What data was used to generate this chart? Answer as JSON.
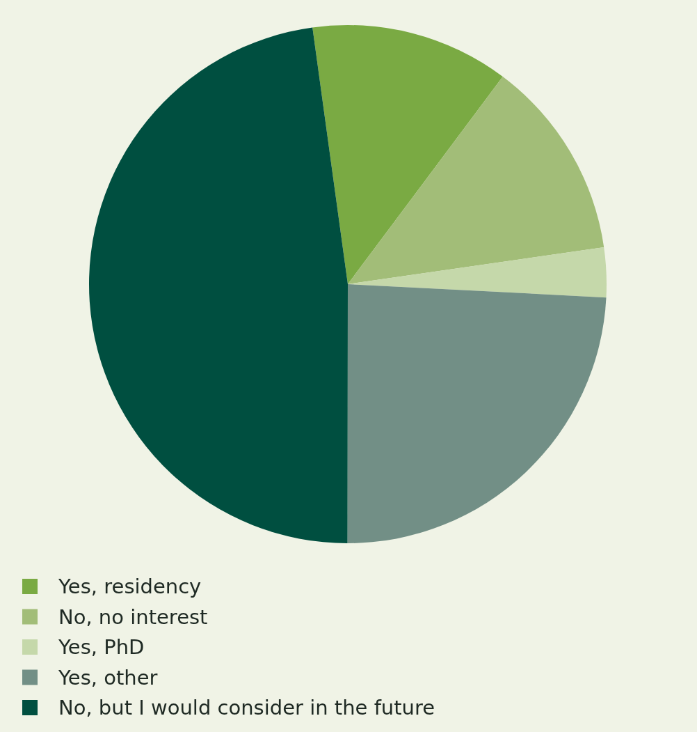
{
  "chart_data": {
    "type": "pie",
    "categories": [
      "Yes, residency",
      "No, no interest",
      "Yes, PhD",
      "Yes, other",
      "No, but I would consider in the future"
    ],
    "values": [
      12.4,
      12.5,
      3.1,
      24.2,
      47.8
    ],
    "colors": [
      "#7aaa43",
      "#a2bd78",
      "#c5d8aa",
      "#728f86",
      "#004f40"
    ],
    "legend": "bottom left"
  }
}
